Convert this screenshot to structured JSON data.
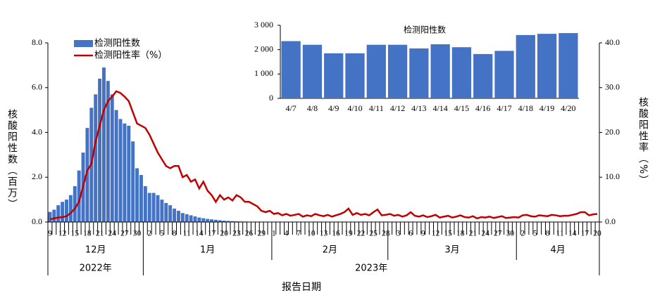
{
  "chart_data": [
    {
      "type": "bar-line",
      "y_label": "核酸阳性数（百万）",
      "y2_label": "核酸阳性率（%）",
      "x_label": "报告日期",
      "periods": [
        {
          "year": "2022年",
          "months": [
            {
              "month": "12月",
              "days": [
                "9",
                null,
                null,
                "12",
                null,
                null,
                "15",
                null,
                null,
                "18",
                null,
                null,
                "21",
                null,
                null,
                "24",
                null,
                null,
                "27",
                null,
                null,
                "30",
                null
              ]
            }
          ]
        },
        {
          "year": "2023年",
          "months": [
            {
              "month": "1月",
              "days": [
                null,
                "2",
                null,
                null,
                "5",
                null,
                null,
                "8",
                null,
                null,
                "11",
                null,
                null,
                "14",
                null,
                null,
                "17",
                null,
                null,
                "20",
                null,
                null,
                "23",
                null,
                null,
                "26",
                null,
                null,
                "29",
                null,
                null
              ]
            },
            {
              "month": "2月",
              "days": [
                "1",
                null,
                null,
                "4",
                null,
                null,
                "7",
                null,
                null,
                "10",
                null,
                null,
                "13",
                null,
                null,
                "16",
                null,
                null,
                "19",
                null,
                null,
                "22",
                null,
                null,
                "25",
                null,
                null,
                "28"
              ]
            },
            {
              "month": "3月",
              "days": [
                null,
                null,
                "3",
                null,
                null,
                "6",
                null,
                null,
                "9",
                null,
                null,
                "12",
                null,
                null,
                "15",
                null,
                null,
                "18",
                null,
                null,
                "21",
                null,
                null,
                "24",
                null,
                null,
                "27",
                null,
                null,
                "30",
                null
              ]
            },
            {
              "month": "4月",
              "days": [
                null,
                "2",
                null,
                null,
                "5",
                null,
                null,
                "8",
                null,
                null,
                "11",
                null,
                null,
                "14",
                null,
                null,
                "17",
                null,
                null,
                "20"
              ]
            }
          ]
        }
      ],
      "series": [
        {
          "name": "检测阳性数",
          "color": "#4472c4",
          "values": [
            0.45,
            0.55,
            0.75,
            0.9,
            1.0,
            1.2,
            1.6,
            2.3,
            3.1,
            4.2,
            5.1,
            5.7,
            6.4,
            6.9,
            6.3,
            5.7,
            5.0,
            4.6,
            4.4,
            4.3,
            3.6,
            2.4,
            2.1,
            1.6,
            1.3,
            1.3,
            1.2,
            1.0,
            0.85,
            0.75,
            0.6,
            0.5,
            0.4,
            0.35,
            0.3,
            0.25,
            0.2,
            0.17,
            0.14,
            0.12,
            0.1,
            0.08,
            0.06,
            0.05,
            0.04,
            0.03,
            0.025,
            0.02,
            0.015,
            0.012,
            0.01,
            0.008,
            0.007,
            0.006,
            0.006,
            0.006,
            0.005,
            0.005,
            0.005,
            0.005,
            0.005,
            0.005,
            0.005,
            0.005,
            0.005,
            0.005,
            0.005,
            0.005,
            0.005,
            0.005,
            0.005,
            0.005,
            0.005,
            0.005,
            0.005,
            0.005,
            0.005,
            0.005,
            0.005,
            0.005,
            0.005,
            0.005,
            0.004,
            0.004,
            0.004,
            0.004,
            0.004,
            0.004,
            0.004,
            0.004,
            0.004,
            0.004,
            0.004,
            0.004,
            0.004,
            0.004,
            0.004,
            0.004,
            0.003,
            0.003,
            0.003,
            0.003,
            0.003,
            0.003,
            0.003,
            0.003,
            0.003,
            0.003,
            0.003,
            0.003,
            0.003,
            0.003,
            0.003,
            0.002,
            0.002,
            0.002,
            0.002,
            0.002,
            0.002,
            0.00235,
            0.0022,
            0.00185,
            0.00185,
            0.0022,
            0.0022,
            0.00205,
            0.00222,
            0.0021,
            0.00182,
            0.00195,
            0.0026,
            0.00265,
            0.00268
          ]
        },
        {
          "name": "检测阳性率（%）",
          "color": "#c00000",
          "axis": "y2",
          "values": [
            0.6,
            0.8,
            1.0,
            1.1,
            1.3,
            2.0,
            3.0,
            4.5,
            8,
            11.5,
            13,
            18,
            21.5,
            25,
            27,
            28,
            29.2,
            28.8,
            28,
            27,
            24.5,
            22,
            21.5,
            21,
            19.5,
            17.5,
            15.5,
            14,
            12.5,
            12,
            12.5,
            12.5,
            10,
            10.5,
            9,
            9.5,
            7.5,
            9,
            7,
            6,
            4.5,
            6,
            5,
            5.5,
            4.8,
            6,
            5.5,
            4.5,
            4.5,
            4.0,
            3.5,
            2.5,
            2.2,
            2.5,
            1.8,
            2,
            1.5,
            1.8,
            1.4,
            1.6,
            1.8,
            1.2,
            1.5,
            1.3,
            1.8,
            1.5,
            1.3,
            1.6,
            1.2,
            1.5,
            1.8,
            2.2,
            3.0,
            1.6,
            2.0,
            1.6,
            1.8,
            1.5,
            2.2,
            2.8,
            1.5,
            1.6,
            1.8,
            1.4,
            1.6,
            1.2,
            1.5,
            2.2,
            1.4,
            1.2,
            1.5,
            1.1,
            1.3,
            1.6,
            1.0,
            1.2,
            1.4,
            1.0,
            1.2,
            1.5,
            1.1,
            1.0,
            1.3,
            0.8,
            1.1,
            1.0,
            1.2,
            0.9,
            1.1,
            1.3,
            0.9,
            1.0,
            1.1,
            1.0,
            1.5,
            1.6,
            1.3,
            1.2,
            1.5,
            1.4,
            1.3,
            1.6,
            1.5,
            1.3,
            1.4,
            1.4,
            1.6,
            1.8,
            2.2,
            2.2,
            1.5,
            1.7,
            1.8
          ]
        }
      ],
      "ylim": [
        0,
        8
      ],
      "yticks": [
        {
          "value": 0,
          "label": "0.0"
        },
        {
          "value": 2,
          "label": "2.0"
        },
        {
          "value": 4,
          "label": "4.0"
        },
        {
          "value": 6,
          "label": "6.0"
        },
        {
          "value": 8,
          "label": "8.0"
        }
      ],
      "y2lim": [
        0,
        40
      ],
      "y2ticks": [
        {
          "value": 0,
          "label": "0.0"
        },
        {
          "value": 10,
          "label": "10.0"
        },
        {
          "value": 20,
          "label": "20.0"
        },
        {
          "value": 30,
          "label": "30.0"
        },
        {
          "value": 40,
          "label": "40.0"
        }
      ],
      "legend": "upper left"
    },
    {
      "type": "bar",
      "title": "检测阳性数",
      "categories": [
        "4/7",
        "4/8",
        "4/9",
        "4/10",
        "4/11",
        "4/12",
        "4/13",
        "4/14",
        "4/15",
        "4/16",
        "4/17",
        "4/18",
        "4/19",
        "4/20"
      ],
      "values": [
        2350,
        2200,
        1850,
        1850,
        2200,
        2200,
        2050,
        2220,
        2100,
        1820,
        1950,
        2600,
        2650,
        2680
      ],
      "color": "#4472c4",
      "ylim": [
        0,
        3000
      ],
      "yticks": [
        0,
        {
          "value": 1000,
          "label": "1 000"
        },
        {
          "value": 2000,
          "label": "2 000"
        },
        {
          "value": 3000,
          "label": "3 000"
        }
      ]
    }
  ]
}
